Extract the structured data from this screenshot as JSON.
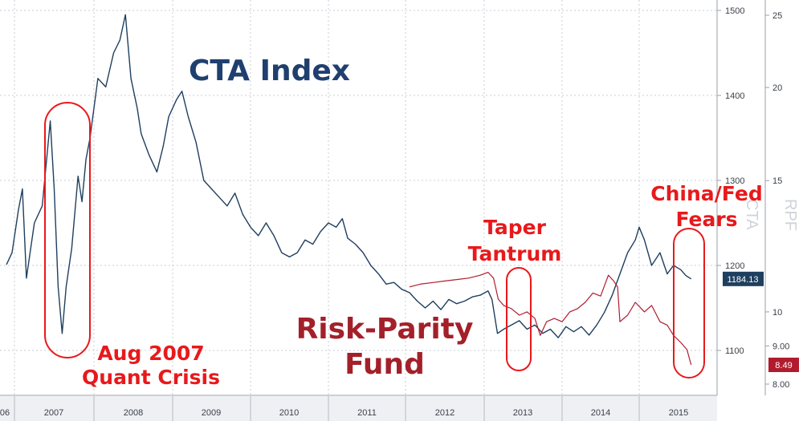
{
  "chart_data": {
    "type": "line",
    "x_axis": {
      "tick_labels": [
        "06",
        "2007",
        "2008",
        "2009",
        "2010",
        "2011",
        "2012",
        "2013",
        "2014",
        "2015"
      ],
      "range": [
        2006.9,
        2015.75
      ]
    },
    "y_axes": [
      {
        "side": "right-inner",
        "range": [
          1065,
          1500
        ],
        "ticks": [
          1100,
          1200,
          1300,
          1400,
          1500
        ],
        "tick_labels": [
          "1100",
          "1200",
          "1300",
          "1400",
          "1500"
        ],
        "rotated_label": "CTA"
      },
      {
        "side": "right-outer",
        "scale": "log",
        "range": [
          7.6,
          26
        ],
        "ticks": [
          8,
          9,
          10,
          15,
          20,
          25
        ],
        "tick_labels": [
          "8.00",
          "9.00",
          "10",
          "15",
          "20",
          "25"
        ],
        "rotated_label": "RPF"
      }
    ],
    "grid": true,
    "series": [
      {
        "name": "CTA Index",
        "color": "#1f3f5f",
        "axis": 0,
        "last_value_label": "1184.13",
        "points": [
          [
            2006.9,
            1201
          ],
          [
            2006.97,
            1215
          ],
          [
            2007.05,
            1265
          ],
          [
            2007.1,
            1290
          ],
          [
            2007.15,
            1185
          ],
          [
            2007.25,
            1250
          ],
          [
            2007.35,
            1270
          ],
          [
            2007.45,
            1370
          ],
          [
            2007.5,
            1290
          ],
          [
            2007.55,
            1175
          ],
          [
            2007.6,
            1120
          ],
          [
            2007.65,
            1175
          ],
          [
            2007.72,
            1220
          ],
          [
            2007.8,
            1305
          ],
          [
            2007.85,
            1275
          ],
          [
            2007.9,
            1325
          ],
          [
            2007.95,
            1350
          ],
          [
            2008.05,
            1420
          ],
          [
            2008.15,
            1410
          ],
          [
            2008.25,
            1450
          ],
          [
            2008.33,
            1465
          ],
          [
            2008.4,
            1495
          ],
          [
            2008.47,
            1420
          ],
          [
            2008.55,
            1385
          ],
          [
            2008.6,
            1355
          ],
          [
            2008.7,
            1330
          ],
          [
            2008.8,
            1310
          ],
          [
            2008.88,
            1340
          ],
          [
            2008.95,
            1375
          ],
          [
            2009.05,
            1395
          ],
          [
            2009.12,
            1405
          ],
          [
            2009.2,
            1375
          ],
          [
            2009.3,
            1345
          ],
          [
            2009.4,
            1300
          ],
          [
            2009.5,
            1290
          ],
          [
            2009.6,
            1280
          ],
          [
            2009.7,
            1270
          ],
          [
            2009.8,
            1285
          ],
          [
            2009.9,
            1260
          ],
          [
            2010.0,
            1245
          ],
          [
            2010.1,
            1235
          ],
          [
            2010.2,
            1250
          ],
          [
            2010.3,
            1235
          ],
          [
            2010.4,
            1215
          ],
          [
            2010.5,
            1210
          ],
          [
            2010.6,
            1215
          ],
          [
            2010.7,
            1230
          ],
          [
            2010.8,
            1225
          ],
          [
            2010.9,
            1240
          ],
          [
            2011.0,
            1250
          ],
          [
            2011.1,
            1245
          ],
          [
            2011.18,
            1255
          ],
          [
            2011.25,
            1232
          ],
          [
            2011.35,
            1225
          ],
          [
            2011.45,
            1215
          ],
          [
            2011.55,
            1200
          ],
          [
            2011.65,
            1190
          ],
          [
            2011.75,
            1178
          ],
          [
            2011.85,
            1180
          ],
          [
            2011.95,
            1172
          ],
          [
            2012.05,
            1168
          ],
          [
            2012.15,
            1158
          ],
          [
            2012.25,
            1150
          ],
          [
            2012.35,
            1158
          ],
          [
            2012.45,
            1148
          ],
          [
            2012.55,
            1160
          ],
          [
            2012.65,
            1155
          ],
          [
            2012.75,
            1158
          ],
          [
            2012.85,
            1163
          ],
          [
            2012.95,
            1165
          ],
          [
            2013.05,
            1170
          ],
          [
            2013.1,
            1160
          ],
          [
            2013.17,
            1120
          ],
          [
            2013.25,
            1125
          ],
          [
            2013.35,
            1130
          ],
          [
            2013.45,
            1135
          ],
          [
            2013.55,
            1125
          ],
          [
            2013.65,
            1130
          ],
          [
            2013.75,
            1120
          ],
          [
            2013.85,
            1125
          ],
          [
            2013.95,
            1115
          ],
          [
            2014.05,
            1128
          ],
          [
            2014.15,
            1122
          ],
          [
            2014.25,
            1128
          ],
          [
            2014.35,
            1118
          ],
          [
            2014.45,
            1130
          ],
          [
            2014.55,
            1145
          ],
          [
            2014.65,
            1165
          ],
          [
            2014.75,
            1190
          ],
          [
            2014.85,
            1215
          ],
          [
            2014.95,
            1230
          ],
          [
            2015.0,
            1245
          ],
          [
            2015.05,
            1230
          ],
          [
            2015.12,
            1200
          ],
          [
            2015.2,
            1215
          ],
          [
            2015.27,
            1190
          ],
          [
            2015.33,
            1200
          ],
          [
            2015.4,
            1195
          ],
          [
            2015.45,
            1188
          ],
          [
            2015.5,
            1184.13
          ]
        ]
      },
      {
        "name": "Risk-Parity Fund",
        "color": "#b01c2e",
        "axis": 1,
        "last_value_label": "8.49",
        "points": [
          [
            2012.05,
            10.8
          ],
          [
            2012.2,
            10.9
          ],
          [
            2012.35,
            10.95
          ],
          [
            2012.5,
            11.0
          ],
          [
            2012.65,
            11.05
          ],
          [
            2012.8,
            11.1
          ],
          [
            2012.95,
            11.2
          ],
          [
            2013.05,
            11.3
          ],
          [
            2013.12,
            11.1
          ],
          [
            2013.18,
            10.4
          ],
          [
            2013.25,
            10.2
          ],
          [
            2013.35,
            10.1
          ],
          [
            2013.45,
            9.9
          ],
          [
            2013.55,
            10.0
          ],
          [
            2013.65,
            9.8
          ],
          [
            2013.72,
            9.3
          ],
          [
            2013.8,
            9.7
          ],
          [
            2013.9,
            9.8
          ],
          [
            2014.0,
            9.7
          ],
          [
            2014.1,
            10.0
          ],
          [
            2014.2,
            10.1
          ],
          [
            2014.3,
            10.3
          ],
          [
            2014.4,
            10.6
          ],
          [
            2014.5,
            10.5
          ],
          [
            2014.6,
            11.2
          ],
          [
            2014.67,
            11.0
          ],
          [
            2014.72,
            10.8
          ],
          [
            2014.75,
            9.7
          ],
          [
            2014.85,
            9.9
          ],
          [
            2014.95,
            10.3
          ],
          [
            2015.05,
            10.0
          ],
          [
            2015.12,
            10.2
          ],
          [
            2015.2,
            9.7
          ],
          [
            2015.27,
            9.6
          ],
          [
            2015.33,
            9.3
          ],
          [
            2015.4,
            9.1
          ],
          [
            2015.46,
            8.9
          ],
          [
            2015.5,
            8.49
          ]
        ]
      }
    ],
    "annotations": [
      {
        "text_lines": [
          "CTA Index"
        ],
        "color": "#1f3f6f"
      },
      {
        "text_lines": [
          "Aug 2007",
          "Quant Crisis"
        ],
        "color": "#e8191b"
      },
      {
        "text_lines": [
          "Risk-Parity",
          "Fund"
        ],
        "color": "#a3202a"
      },
      {
        "text_lines": [
          "Taper",
          "Tantrum"
        ],
        "color": "#e8191b"
      },
      {
        "text_lines": [
          "China/Fed",
          "Fears"
        ],
        "color": "#e8191b"
      }
    ]
  }
}
